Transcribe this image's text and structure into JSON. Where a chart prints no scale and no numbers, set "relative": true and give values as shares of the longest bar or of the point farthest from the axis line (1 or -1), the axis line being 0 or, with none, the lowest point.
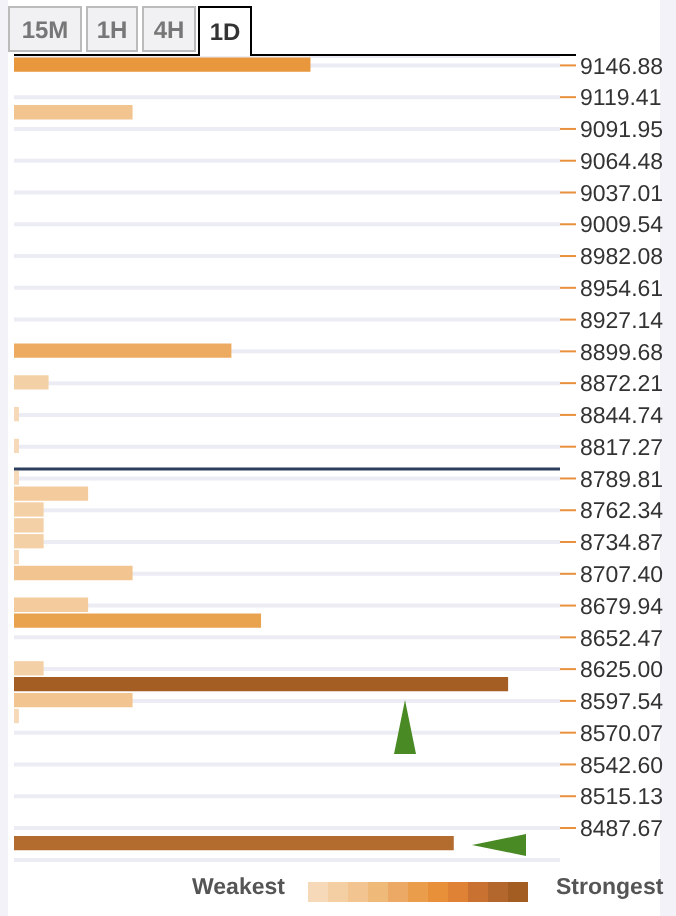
{
  "chart_data": {
    "type": "bar",
    "orientation": "horizontal",
    "relative": true,
    "x": [
      9146.88,
      9105.68,
      8899.68,
      8872.21,
      8844.74,
      8817.27,
      8789.81,
      8776.08,
      8762.34,
      8748.61,
      8734.87,
      8721.14,
      8707.4,
      8679.94,
      8666.21,
      8625.0,
      8611.27,
      8597.54,
      8583.81,
      8473.94
    ],
    "values": [
      0.6,
      0.24,
      0.44,
      0.07,
      0.01,
      0.01,
      0.01,
      0.15,
      0.06,
      0.06,
      0.06,
      0.01,
      0.24,
      0.15,
      0.5,
      0.06,
      1,
      0.24,
      0.01,
      0.89
    ],
    "colors": [
      "#e9973d",
      "#f2c590",
      "#ecab60",
      "#f4d0a6",
      "#f6d9b8",
      "#f6d9b8",
      "#f6d9b8",
      "#f3cb9c",
      "#f4d0a6",
      "#f4d0a6",
      "#f4d0a6",
      "#f6d9b8",
      "#f2c590",
      "#f3cb9c",
      "#e9a24e",
      "#f4d0a6",
      "#a45e24",
      "#f2c590",
      "#f6d9b8",
      "#b46b2e"
    ],
    "ylim": [
      8460,
      9155
    ],
    "yticks": [
      9146.88,
      9119.41,
      9091.95,
      9064.48,
      9037.01,
      9009.54,
      8982.08,
      8954.61,
      8927.14,
      8899.68,
      8872.21,
      8844.74,
      8817.27,
      8789.81,
      8762.34,
      8734.87,
      {
        "value": 8707.4,
        "label": "8707.40"
      },
      8679.94,
      8652.47,
      {
        "value": 8625,
        "label": "8625.00"
      },
      8597.54,
      8570.07,
      {
        "value": 8542.6,
        "label": "8542.60"
      },
      8515.13,
      8487.67
    ],
    "grid": "y",
    "ref_lines": [
      {
        "axis": "y",
        "value": 8798,
        "color": "#2c3e5c"
      }
    ],
    "annotations": [
      "15M",
      "1H",
      "4H",
      "1D",
      "Weakest",
      "Strongest"
    ]
  }
}
